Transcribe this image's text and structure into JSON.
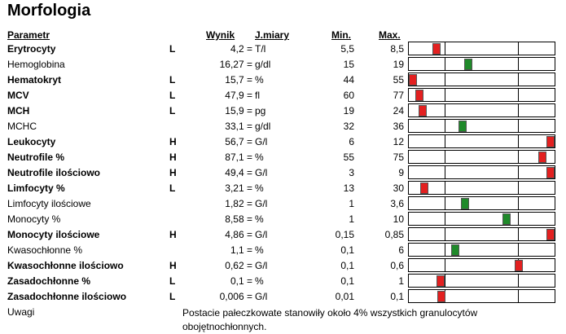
{
  "title": "Morfologia",
  "headers": {
    "parametr": "Parametr",
    "wynik": "Wynik",
    "jmiary": "J.miary",
    "min": "Min.",
    "max": "Max."
  },
  "rows": [
    {
      "name": "Erytrocyty",
      "flag": "L",
      "value": "4,2 =",
      "unit": "T/l",
      "min": "5,5",
      "max": "8,5",
      "marker_pos": 0.17,
      "marker": "abnormal"
    },
    {
      "name": "Hemoglobina",
      "flag": "",
      "value": "16,27 =",
      "unit": "g/dl",
      "min": "15",
      "max": "19",
      "marker_pos": 0.4,
      "marker": "normal"
    },
    {
      "name": "Hematokryt",
      "flag": "L",
      "value": "15,7 =",
      "unit": "%",
      "min": "44",
      "max": "55",
      "marker_pos": 0.0,
      "marker": "abnormal"
    },
    {
      "name": "MCV",
      "flag": "L",
      "value": "47,9 =",
      "unit": "fl",
      "min": "60",
      "max": "77",
      "marker_pos": 0.05,
      "marker": "abnormal"
    },
    {
      "name": "MCH",
      "flag": "L",
      "value": "15,9 =",
      "unit": "pg",
      "min": "19",
      "max": "24",
      "marker_pos": 0.07,
      "marker": "abnormal"
    },
    {
      "name": "MCHC",
      "flag": "",
      "value": "33,1 =",
      "unit": "g/dl",
      "min": "32",
      "max": "36",
      "marker_pos": 0.36,
      "marker": "normal"
    },
    {
      "name": "Leukocyty",
      "flag": "H",
      "value": "56,7 =",
      "unit": "G/l",
      "min": "6",
      "max": "12",
      "marker_pos": 1.0,
      "marker": "abnormal"
    },
    {
      "name": "Neutrofile %",
      "flag": "H",
      "value": "87,1 =",
      "unit": "%",
      "min": "55",
      "max": "75",
      "marker_pos": 0.94,
      "marker": "abnormal"
    },
    {
      "name": "Neutrofile ilościowo",
      "flag": "H",
      "value": "49,4 =",
      "unit": "G/l",
      "min": "3",
      "max": "9",
      "marker_pos": 1.0,
      "marker": "abnormal"
    },
    {
      "name": "Limfocyty %",
      "flag": "L",
      "value": "3,21 =",
      "unit": "%",
      "min": "13",
      "max": "30",
      "marker_pos": 0.08,
      "marker": "abnormal"
    },
    {
      "name": "Limfocyty ilościowe",
      "flag": "",
      "value": "1,82 =",
      "unit": "G/l",
      "min": "1",
      "max": "3,6",
      "marker_pos": 0.38,
      "marker": "normal"
    },
    {
      "name": "Monocyty %",
      "flag": "",
      "value": "8,58 =",
      "unit": "%",
      "min": "1",
      "max": "10",
      "marker_pos": 0.68,
      "marker": "normal"
    },
    {
      "name": "Monocyty ilościowe",
      "flag": "H",
      "value": "4,86 =",
      "unit": "G/l",
      "min": "0,15",
      "max": "0,85",
      "marker_pos": 1.0,
      "marker": "abnormal"
    },
    {
      "name": "Kwasochłonne %",
      "flag": "",
      "value": "1,1 =",
      "unit": "%",
      "min": "0,1",
      "max": "6",
      "marker_pos": 0.31,
      "marker": "normal"
    },
    {
      "name": "Kwasochłonne ilościowo",
      "flag": "H",
      "value": "0,62 =",
      "unit": "G/l",
      "min": "0,1",
      "max": "0,6",
      "marker_pos": 0.77,
      "marker": "abnormal"
    },
    {
      "name": "Zasadochłonne %",
      "flag": "L",
      "value": "0,1 =",
      "unit": "%",
      "min": "0,1",
      "max": "1",
      "marker_pos": 0.2,
      "marker": "abnormal"
    },
    {
      "name": "Zasadochłonne ilościowo",
      "flag": "L",
      "value": "0,006 =",
      "unit": "G/l",
      "min": "0,01",
      "max": "0,1",
      "marker_pos": 0.21,
      "marker": "abnormal"
    }
  ],
  "uwagi": {
    "label": "Uwagi",
    "text": "Postacie pałeczkowate stanowiły około 4% wszystkich granulocytów obojętnochłonnych."
  },
  "colors": {
    "abnormal": "#e32020",
    "normal": "#1f8a2a"
  }
}
